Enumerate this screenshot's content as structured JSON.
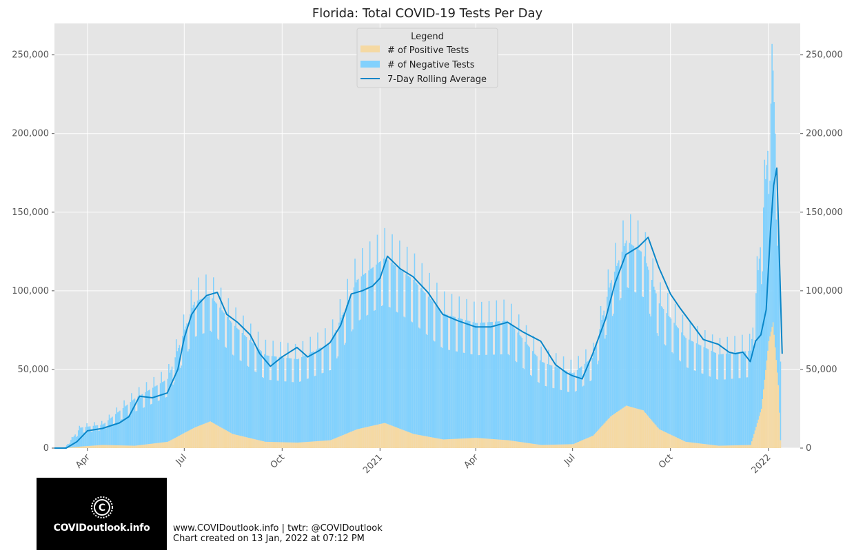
{
  "chart_data": {
    "type": "bar",
    "title": "Florida: Total COVID-19 Tests Per Day",
    "xlabel": "",
    "ylabel": "",
    "stacked": true,
    "grid": true,
    "legend_title": "Legend",
    "legend_position": "top-center",
    "x_range": [
      "2020-03-01",
      "2022-01-31"
    ],
    "ylim": [
      0,
      270000
    ],
    "y_ticks": [
      0,
      50000,
      100000,
      150000,
      200000,
      250000
    ],
    "y_tick_labels": [
      "0",
      "50,000",
      "100,000",
      "150,000",
      "200,000",
      "250,000"
    ],
    "x_ticks": [
      "2020-04-01",
      "2020-07-01",
      "2020-10-01",
      "2021-01-01",
      "2021-04-01",
      "2021-07-01",
      "2021-10-01",
      "2022-01-01"
    ],
    "x_tick_labels": [
      "Apr",
      "Jul",
      "Oct",
      "2021",
      "Apr",
      "Jul",
      "Oct",
      "2022"
    ],
    "x_tick_rotation": 45,
    "series": [
      {
        "name": "# of Positive Tests",
        "kind": "bar",
        "color": "#f5d9a3",
        "x": [
          "2020-03-10",
          "2020-03-25",
          "2020-04-15",
          "2020-05-15",
          "2020-06-15",
          "2020-07-10",
          "2020-07-25",
          "2020-08-15",
          "2020-09-15",
          "2020-10-15",
          "2020-11-15",
          "2020-12-10",
          "2021-01-05",
          "2021-02-01",
          "2021-03-01",
          "2021-04-01",
          "2021-05-01",
          "2021-06-01",
          "2021-07-01",
          "2021-07-20",
          "2021-08-05",
          "2021-08-20",
          "2021-09-05",
          "2021-09-20",
          "2021-10-15",
          "2021-11-15",
          "2021-12-15",
          "2021-12-25",
          "2022-01-01",
          "2022-01-05",
          "2022-01-10",
          "2022-01-12"
        ],
        "values": [
          0,
          1000,
          2000,
          1500,
          4000,
          13000,
          17000,
          9000,
          4000,
          3500,
          5000,
          12000,
          16000,
          9000,
          5500,
          6500,
          5000,
          2000,
          2500,
          8000,
          20000,
          27000,
          24000,
          12000,
          4000,
          1500,
          2000,
          25000,
          68000,
          80000,
          40000,
          5000
        ]
      },
      {
        "name": "# of Negative Tests",
        "kind": "bar",
        "color": "#82d1fd",
        "x": [
          "2020-03-10",
          "2020-03-25",
          "2020-04-15",
          "2020-05-15",
          "2020-06-15",
          "2020-07-10",
          "2020-07-25",
          "2020-08-15",
          "2020-09-15",
          "2020-10-15",
          "2020-11-15",
          "2020-12-10",
          "2021-01-05",
          "2021-02-01",
          "2021-03-01",
          "2021-04-01",
          "2021-05-01",
          "2021-06-01",
          "2021-07-01",
          "2021-07-20",
          "2021-08-05",
          "2021-08-20",
          "2021-09-05",
          "2021-09-20",
          "2021-10-15",
          "2021-11-15",
          "2021-12-15",
          "2021-12-25",
          "2022-01-01",
          "2022-01-05",
          "2022-01-10",
          "2022-01-12"
        ],
        "values": [
          0,
          12000,
          13000,
          30000,
          40000,
          80000,
          80000,
          70000,
          55000,
          53000,
          62000,
          95000,
          105000,
          98000,
          80000,
          73000,
          76000,
          53000,
          45000,
          50000,
          85000,
          105000,
          100000,
          80000,
          66000,
          58000,
          60000,
          110000,
          130000,
          160000,
          100000,
          50000
        ]
      },
      {
        "name": "7-Day Rolling Average",
        "kind": "line",
        "color": "#0a86c8",
        "x": [
          "2020-03-01",
          "2020-03-12",
          "2020-03-22",
          "2020-04-01",
          "2020-04-15",
          "2020-05-01",
          "2020-05-10",
          "2020-05-20",
          "2020-06-01",
          "2020-06-15",
          "2020-06-25",
          "2020-07-01",
          "2020-07-08",
          "2020-07-15",
          "2020-07-22",
          "2020-08-01",
          "2020-08-10",
          "2020-08-20",
          "2020-09-01",
          "2020-09-10",
          "2020-09-20",
          "2020-10-01",
          "2020-10-15",
          "2020-10-25",
          "2020-11-05",
          "2020-11-15",
          "2020-11-25",
          "2020-12-05",
          "2020-12-15",
          "2020-12-25",
          "2021-01-01",
          "2021-01-08",
          "2021-01-20",
          "2021-02-01",
          "2021-02-15",
          "2021-03-01",
          "2021-03-15",
          "2021-04-01",
          "2021-04-15",
          "2021-05-01",
          "2021-05-15",
          "2021-06-01",
          "2021-06-15",
          "2021-06-25",
          "2021-07-01",
          "2021-07-10",
          "2021-07-20",
          "2021-08-01",
          "2021-08-10",
          "2021-08-20",
          "2021-09-01",
          "2021-09-10",
          "2021-09-20",
          "2021-10-01",
          "2021-10-10",
          "2021-10-20",
          "2021-11-01",
          "2021-11-15",
          "2021-11-25",
          "2021-12-01",
          "2021-12-08",
          "2021-12-15",
          "2021-12-20",
          "2021-12-25",
          "2021-12-30",
          "2022-01-03",
          "2022-01-06",
          "2022-01-09",
          "2022-01-14"
        ],
        "values": [
          0,
          0,
          4000,
          11000,
          12500,
          16000,
          20000,
          33000,
          32000,
          35000,
          50000,
          70000,
          85000,
          92000,
          97000,
          99000,
          85000,
          80000,
          72000,
          60000,
          52000,
          58000,
          64000,
          58000,
          62000,
          67000,
          78000,
          98000,
          100000,
          103000,
          108000,
          122000,
          114000,
          109000,
          99000,
          85000,
          81000,
          77000,
          77000,
          80000,
          74000,
          68000,
          53000,
          48000,
          46000,
          44000,
          60000,
          82000,
          105000,
          123000,
          128000,
          134000,
          115000,
          98000,
          89000,
          80000,
          69000,
          66000,
          61000,
          60000,
          61000,
          55000,
          68000,
          72000,
          88000,
          138000,
          167000,
          178000,
          60000
        ]
      }
    ]
  },
  "footer": {
    "line1": "www.COVIDoutlook.info | twtr: @COVIDoutlook",
    "line2": "Chart created on 13 Jan, 2022 at 07:12 PM"
  },
  "logo": {
    "text": "COVIDoutlook.info"
  }
}
